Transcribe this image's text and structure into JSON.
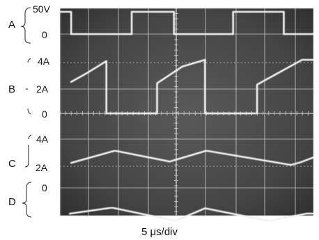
{
  "chart_data": {
    "type": "line",
    "xlabel": "5 μs/div",
    "channels": [
      {
        "id": "A",
        "label": "A",
        "ticks": [
          {
            "text": "50V",
            "value": 50
          },
          {
            "text": "0",
            "value": 0
          }
        ],
        "x": [
          0,
          0.4,
          0.4,
          2.55,
          2.55,
          3.75,
          3.75,
          4.05,
          4.05,
          6.15,
          6.15,
          7.3,
          7.3,
          7.95,
          7.95,
          9.0
        ],
        "y": [
          50,
          50,
          0,
          0,
          50,
          50,
          50,
          50,
          0,
          0,
          50,
          50,
          50,
          50,
          0,
          0
        ]
      },
      {
        "id": "B",
        "label": "B",
        "ticks": [
          {
            "text": "4A",
            "value": 4
          },
          {
            "text": "2A",
            "value": 2
          },
          {
            "text": "0",
            "value": 0
          }
        ],
        "x": [
          0.4,
          0.95,
          1.65,
          1.65,
          3.45,
          3.45,
          4.35,
          5.15,
          5.15,
          7.0,
          7.0,
          8.6,
          9.0
        ],
        "y": [
          2.35,
          3.0,
          3.9,
          0,
          0,
          2.25,
          3.5,
          4.0,
          0,
          0,
          2.15,
          4.0,
          4.0
        ]
      },
      {
        "id": "C",
        "label": "C",
        "ticks": [
          {
            "text": "4A",
            "value": 4
          },
          {
            "text": "2A",
            "value": 2
          }
        ],
        "x": [
          0.4,
          1.95,
          3.9,
          5.2,
          8.2,
          8.55,
          9.0
        ],
        "y": [
          2.25,
          3.15,
          2.35,
          3.15,
          2.1,
          2.3,
          2.65
        ]
      },
      {
        "id": "D",
        "label": "D",
        "ticks": [
          {
            "text": "0",
            "value": 0
          }
        ],
        "x": [
          0.35,
          1.85,
          4.1,
          5.15,
          7.4,
          8.75,
          9.0
        ],
        "y": [
          -1.95,
          -1.5,
          -2.5,
          -1.55,
          -2.5,
          -1.95,
          -1.95
        ]
      }
    ]
  }
}
